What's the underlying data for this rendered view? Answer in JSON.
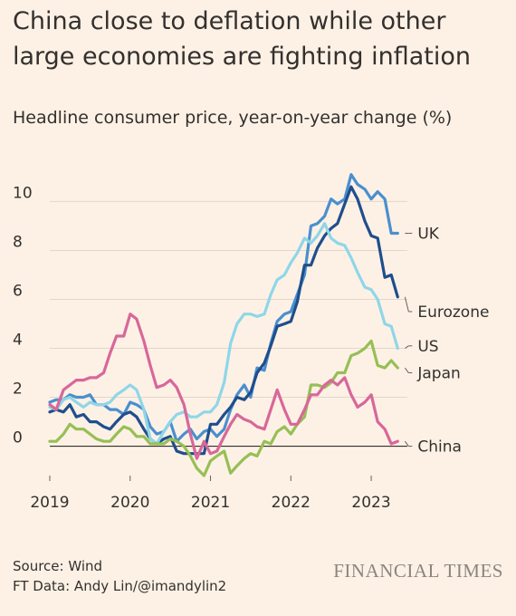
{
  "title": "China close to deflation while other large economies are fighting inflation",
  "subtitle": "Headline consumer price, year-on-year change (%)",
  "source": "Source: Wind",
  "credit": "FT Data: Andy Lin/@imandylin2",
  "brand": "FINANCIAL TIMES",
  "chart_data": {
    "type": "line",
    "title": "China close to deflation while other large economies are fighting inflation",
    "subtitle": "Headline consumer price, year-on-year change (%)",
    "xlabel": "",
    "ylabel": "",
    "xlim": [
      2019.0,
      2023.45
    ],
    "ylim": [
      -1.2,
      11.2
    ],
    "x_ticks": [
      2019,
      2020,
      2021,
      2022,
      2023
    ],
    "x_tick_labels": [
      "2019",
      "2020",
      "2021",
      "2022",
      "2023"
    ],
    "y_ticks": [
      0,
      2,
      4,
      6,
      8,
      10
    ],
    "y_tick_labels": [
      "0",
      "2",
      "4",
      "6",
      "8",
      "10"
    ],
    "grid": "horizontal",
    "legend": "direct labels at right end of each line",
    "series": [
      {
        "name": "UK",
        "color": "#4a8fcf",
        "x": [
          2019.0,
          2019.08,
          2019.17,
          2019.25,
          2019.33,
          2019.42,
          2019.5,
          2019.58,
          2019.67,
          2019.75,
          2019.83,
          2019.92,
          2020.0,
          2020.08,
          2020.17,
          2020.25,
          2020.33,
          2020.42,
          2020.5,
          2020.58,
          2020.67,
          2020.75,
          2020.83,
          2020.92,
          2021.0,
          2021.08,
          2021.17,
          2021.25,
          2021.33,
          2021.42,
          2021.5,
          2021.58,
          2021.67,
          2021.75,
          2021.83,
          2021.92,
          2022.0,
          2022.08,
          2022.17,
          2022.25,
          2022.33,
          2022.42,
          2022.5,
          2022.58,
          2022.67,
          2022.75,
          2022.83,
          2022.92,
          2023.0,
          2023.08,
          2023.17,
          2023.25,
          2023.33
        ],
        "y": [
          1.8,
          1.9,
          1.9,
          2.1,
          2.0,
          2.0,
          2.1,
          1.7,
          1.7,
          1.5,
          1.5,
          1.3,
          1.8,
          1.7,
          1.5,
          0.8,
          0.5,
          0.6,
          1.0,
          0.2,
          0.5,
          0.7,
          0.3,
          0.6,
          0.7,
          0.4,
          0.7,
          1.5,
          2.1,
          2.5,
          2.0,
          3.2,
          3.1,
          4.2,
          5.1,
          5.4,
          5.5,
          6.2,
          7.0,
          9.0,
          9.1,
          9.4,
          10.1,
          9.9,
          10.1,
          11.1,
          10.7,
          10.5,
          10.1,
          10.4,
          10.1,
          8.7,
          8.7
        ]
      },
      {
        "name": "Eurozone",
        "color": "#1f4e8c",
        "x": [
          2019.0,
          2019.08,
          2019.17,
          2019.25,
          2019.33,
          2019.42,
          2019.5,
          2019.58,
          2019.67,
          2019.75,
          2019.83,
          2019.92,
          2020.0,
          2020.08,
          2020.17,
          2020.25,
          2020.33,
          2020.42,
          2020.5,
          2020.58,
          2020.67,
          2020.75,
          2020.83,
          2020.92,
          2021.0,
          2021.08,
          2021.17,
          2021.25,
          2021.33,
          2021.42,
          2021.5,
          2021.58,
          2021.67,
          2021.75,
          2021.83,
          2021.92,
          2022.0,
          2022.08,
          2022.17,
          2022.25,
          2022.33,
          2022.42,
          2022.5,
          2022.58,
          2022.67,
          2022.75,
          2022.83,
          2022.92,
          2023.0,
          2023.08,
          2023.17,
          2023.25,
          2023.33
        ],
        "y": [
          1.4,
          1.5,
          1.4,
          1.7,
          1.2,
          1.3,
          1.0,
          1.0,
          0.8,
          0.7,
          1.0,
          1.3,
          1.4,
          1.2,
          0.7,
          0.3,
          0.1,
          0.3,
          0.4,
          -0.2,
          -0.3,
          -0.3,
          -0.3,
          -0.3,
          0.9,
          0.9,
          1.3,
          1.6,
          2.0,
          1.9,
          2.2,
          3.0,
          3.4,
          4.1,
          4.9,
          5.0,
          5.1,
          5.9,
          7.4,
          7.4,
          8.1,
          8.6,
          8.9,
          9.1,
          9.9,
          10.6,
          10.1,
          9.2,
          8.6,
          8.5,
          6.9,
          7.0,
          6.1
        ]
      },
      {
        "name": "US",
        "color": "#8fd6e8",
        "x": [
          2019.0,
          2019.08,
          2019.17,
          2019.25,
          2019.33,
          2019.42,
          2019.5,
          2019.58,
          2019.67,
          2019.75,
          2019.83,
          2019.92,
          2020.0,
          2020.08,
          2020.17,
          2020.25,
          2020.33,
          2020.42,
          2020.5,
          2020.58,
          2020.67,
          2020.75,
          2020.83,
          2020.92,
          2021.0,
          2021.08,
          2021.17,
          2021.25,
          2021.33,
          2021.42,
          2021.5,
          2021.58,
          2021.67,
          2021.75,
          2021.83,
          2021.92,
          2022.0,
          2022.08,
          2022.17,
          2022.25,
          2022.33,
          2022.42,
          2022.5,
          2022.58,
          2022.67,
          2022.75,
          2022.83,
          2022.92,
          2023.0,
          2023.08,
          2023.17,
          2023.25,
          2023.33
        ],
        "y": [
          1.6,
          1.5,
          1.9,
          2.0,
          1.8,
          1.6,
          1.8,
          1.7,
          1.7,
          1.8,
          2.1,
          2.3,
          2.5,
          2.3,
          1.5,
          0.3,
          0.1,
          0.6,
          1.0,
          1.3,
          1.4,
          1.2,
          1.2,
          1.4,
          1.4,
          1.7,
          2.6,
          4.2,
          5.0,
          5.4,
          5.4,
          5.3,
          5.4,
          6.2,
          6.8,
          7.0,
          7.5,
          7.9,
          8.5,
          8.3,
          8.6,
          9.1,
          8.5,
          8.3,
          8.2,
          7.7,
          7.1,
          6.5,
          6.4,
          6.0,
          5.0,
          4.9,
          4.0
        ]
      },
      {
        "name": "Japan",
        "color": "#96bf55",
        "x": [
          2019.0,
          2019.08,
          2019.17,
          2019.25,
          2019.33,
          2019.42,
          2019.5,
          2019.58,
          2019.67,
          2019.75,
          2019.83,
          2019.92,
          2020.0,
          2020.08,
          2020.17,
          2020.25,
          2020.33,
          2020.42,
          2020.5,
          2020.58,
          2020.67,
          2020.75,
          2020.83,
          2020.92,
          2021.0,
          2021.08,
          2021.17,
          2021.25,
          2021.33,
          2021.42,
          2021.5,
          2021.58,
          2021.67,
          2021.75,
          2021.83,
          2021.92,
          2022.0,
          2022.08,
          2022.17,
          2022.25,
          2022.33,
          2022.42,
          2022.5,
          2022.58,
          2022.67,
          2022.75,
          2022.83,
          2022.92,
          2023.0,
          2023.08,
          2023.17,
          2023.25,
          2023.33
        ],
        "y": [
          0.2,
          0.2,
          0.5,
          0.9,
          0.7,
          0.7,
          0.5,
          0.3,
          0.2,
          0.2,
          0.5,
          0.8,
          0.7,
          0.4,
          0.4,
          0.1,
          0.1,
          0.1,
          0.3,
          0.2,
          0.0,
          -0.4,
          -0.9,
          -1.2,
          -0.6,
          -0.4,
          -0.2,
          -1.1,
          -0.8,
          -0.5,
          -0.3,
          -0.4,
          0.2,
          0.1,
          0.6,
          0.8,
          0.5,
          0.9,
          1.2,
          2.5,
          2.5,
          2.4,
          2.6,
          3.0,
          3.0,
          3.7,
          3.8,
          4.0,
          4.3,
          3.3,
          3.2,
          3.5,
          3.2
        ]
      },
      {
        "name": "China",
        "color": "#d8679a",
        "x": [
          2019.0,
          2019.08,
          2019.17,
          2019.25,
          2019.33,
          2019.42,
          2019.5,
          2019.58,
          2019.67,
          2019.75,
          2019.83,
          2019.92,
          2020.0,
          2020.08,
          2020.17,
          2020.25,
          2020.33,
          2020.42,
          2020.5,
          2020.58,
          2020.67,
          2020.75,
          2020.83,
          2020.92,
          2021.0,
          2021.08,
          2021.17,
          2021.25,
          2021.33,
          2021.42,
          2021.5,
          2021.58,
          2021.67,
          2021.75,
          2021.83,
          2021.92,
          2022.0,
          2022.08,
          2022.17,
          2022.25,
          2022.33,
          2022.42,
          2022.5,
          2022.58,
          2022.67,
          2022.75,
          2022.83,
          2022.92,
          2023.0,
          2023.08,
          2023.17,
          2023.25,
          2023.33
        ],
        "y": [
          1.7,
          1.5,
          2.3,
          2.5,
          2.7,
          2.7,
          2.8,
          2.8,
          3.0,
          3.8,
          4.5,
          4.5,
          5.4,
          5.2,
          4.3,
          3.3,
          2.4,
          2.5,
          2.7,
          2.4,
          1.7,
          0.5,
          -0.5,
          0.2,
          -0.3,
          -0.2,
          0.4,
          0.9,
          1.3,
          1.1,
          1.0,
          0.8,
          0.7,
          1.5,
          2.3,
          1.5,
          0.9,
          0.9,
          1.5,
          2.1,
          2.1,
          2.5,
          2.7,
          2.5,
          2.8,
          2.1,
          1.6,
          1.8,
          2.1,
          1.0,
          0.7,
          0.1,
          0.2
        ]
      }
    ]
  }
}
